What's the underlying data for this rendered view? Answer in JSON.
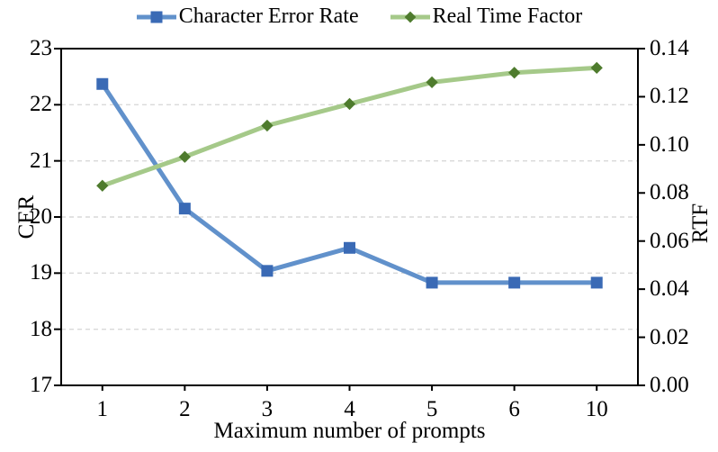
{
  "chart_data": {
    "type": "line",
    "title": "",
    "categories": [
      "1",
      "2",
      "3",
      "4",
      "5",
      "6",
      "10"
    ],
    "xlabel": "Maximum number of prompts",
    "series": [
      {
        "name": "Character Error Rate",
        "axis": "left",
        "marker": "square",
        "line_color": "#6191cb",
        "marker_color": "#3a6ab5",
        "values": [
          22.37,
          20.15,
          19.04,
          19.45,
          18.83,
          18.83,
          18.83
        ]
      },
      {
        "name": "Real Time Factor",
        "axis": "right",
        "marker": "diamond",
        "line_color": "#a5c989",
        "marker_color": "#4e7b2d",
        "values": [
          0.083,
          0.095,
          0.108,
          0.117,
          0.126,
          0.13,
          0.132
        ]
      }
    ],
    "left_axis": {
      "label": "CER",
      "min": 17,
      "max": 23,
      "ticks": [
        "17",
        "18",
        "19",
        "20",
        "21",
        "22",
        "23"
      ]
    },
    "right_axis": {
      "label": "RTF",
      "min": 0,
      "max": 0.14,
      "ticks": [
        "0.00",
        "0.02",
        "0.04",
        "0.06",
        "0.08",
        "0.10",
        "0.12",
        "0.14"
      ]
    },
    "grid": {
      "on": true,
      "at_left_values": [
        18,
        19,
        20,
        21,
        22
      ],
      "color": "#d9d9d9",
      "style": "dashed"
    },
    "legend_position": "top",
    "axis_color": "#000000"
  }
}
